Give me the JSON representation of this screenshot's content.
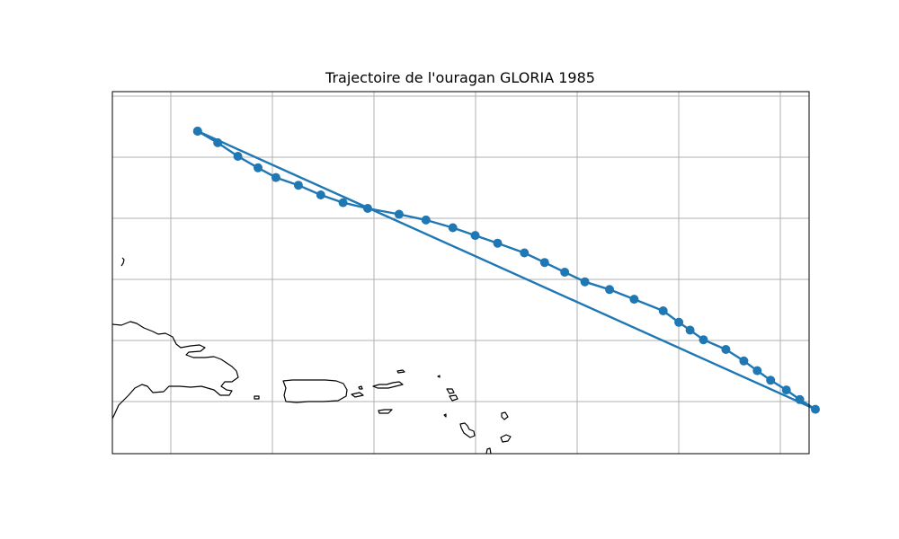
{
  "title": "Trajectoire de l'ouragan GLORIA 1985",
  "chart_data": {
    "type": "line",
    "title": "Trajectoire de l'ouragan GLORIA 1985",
    "xlabel": "",
    "ylabel": "",
    "grid": true,
    "axis_tick_labels_visible": false,
    "map_region": "Caribbean – Hispaniola, Puerto Rico, Virgin Islands, Leeward Islands",
    "series_color": "#1f77b4",
    "series": [
      {
        "x": [
          -63.0,
          -62.1,
          -61.2,
          -60.3,
          -59.5,
          -58.5,
          -57.5,
          -56.5,
          -55.4,
          -54.0,
          -52.8,
          -51.6,
          -50.6,
          -49.6,
          -48.4,
          -47.5,
          -46.6,
          -45.7,
          -44.6,
          -43.5,
          -42.2,
          -41.5,
          -41.0,
          -40.4,
          -39.4,
          -38.6,
          -38.0,
          -37.4,
          -36.7,
          -36.1,
          -35.4,
          -63.0
        ],
        "y": [
          26.8,
          26.5,
          26.15,
          25.85,
          25.6,
          25.4,
          25.15,
          24.95,
          24.8,
          24.65,
          24.5,
          24.3,
          24.1,
          23.9,
          23.65,
          23.4,
          23.15,
          22.9,
          22.7,
          22.45,
          22.15,
          21.85,
          21.65,
          21.4,
          21.15,
          20.85,
          20.6,
          20.35,
          20.1,
          19.85,
          19.6,
          26.8
        ]
      }
    ]
  }
}
